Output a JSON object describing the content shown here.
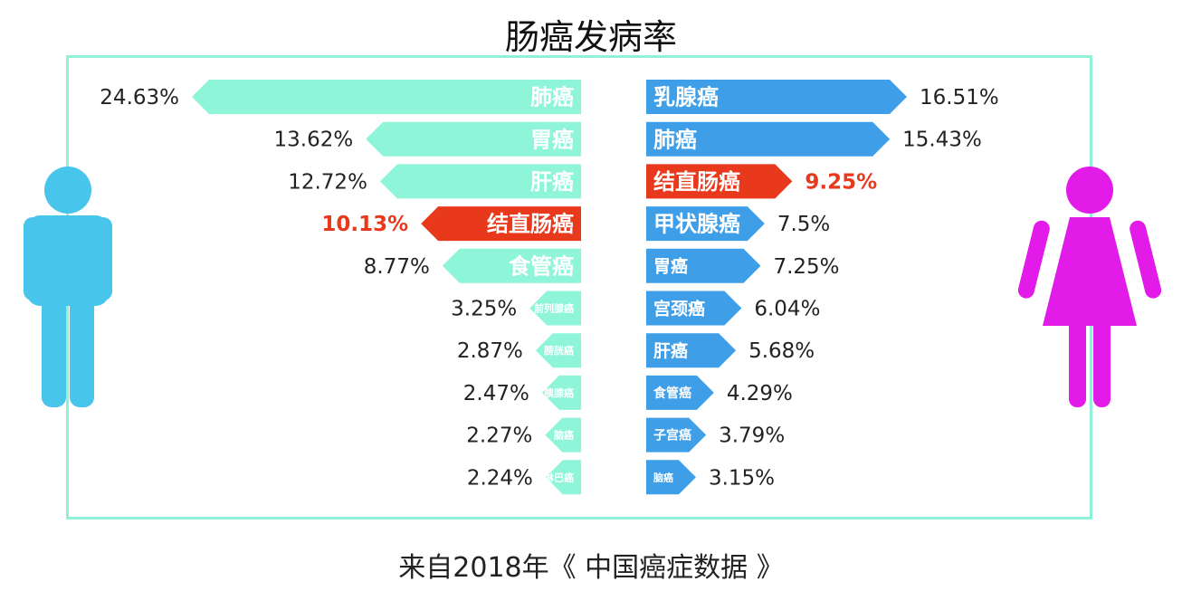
{
  "title": "肠癌发病率",
  "source": "来自2018年《 中国癌症数据 》",
  "colors": {
    "male_bar": "#8ff5d8",
    "female_bar": "#3e9fe8",
    "highlight": "#e8391d",
    "male_icon": "#47c5ea",
    "female_icon": "#e21be8",
    "frame": "#8ff2d8"
  },
  "chart_data": [
    {
      "type": "bar",
      "orientation": "horizontal",
      "direction": "left",
      "icon": "male-figure-icon",
      "highlight_category": "结直肠癌",
      "categories": [
        "肺癌",
        "胃癌",
        "肝癌",
        "结直肠癌",
        "食管癌",
        "前列腺癌",
        "膀胱癌",
        "胰腺癌",
        "脑癌",
        "淋巴癌"
      ],
      "values": [
        24.63,
        13.62,
        12.72,
        10.13,
        8.77,
        3.25,
        2.87,
        2.47,
        2.27,
        2.24
      ],
      "value_labels": [
        "24.63%",
        "13.62%",
        "12.72%",
        "10.13%",
        "8.77%",
        "3.25%",
        "2.87%",
        "2.47%",
        "2.27%",
        "2.24%"
      ]
    },
    {
      "type": "bar",
      "orientation": "horizontal",
      "direction": "right",
      "icon": "female-figure-icon",
      "highlight_category": "结直肠癌",
      "categories": [
        "乳腺癌",
        "肺癌",
        "结直肠癌",
        "甲状腺癌",
        "胃癌",
        "宫颈癌",
        "肝癌",
        "食管癌",
        "子宫癌",
        "脑癌"
      ],
      "values": [
        16.51,
        15.43,
        9.25,
        7.5,
        7.25,
        6.04,
        5.68,
        4.29,
        3.79,
        3.15
      ],
      "value_labels": [
        "16.51%",
        "15.43%",
        "9.25%",
        "7.5%",
        "7.25%",
        "6.04%",
        "5.68%",
        "4.29%",
        "3.79%",
        "3.15%"
      ]
    }
  ]
}
